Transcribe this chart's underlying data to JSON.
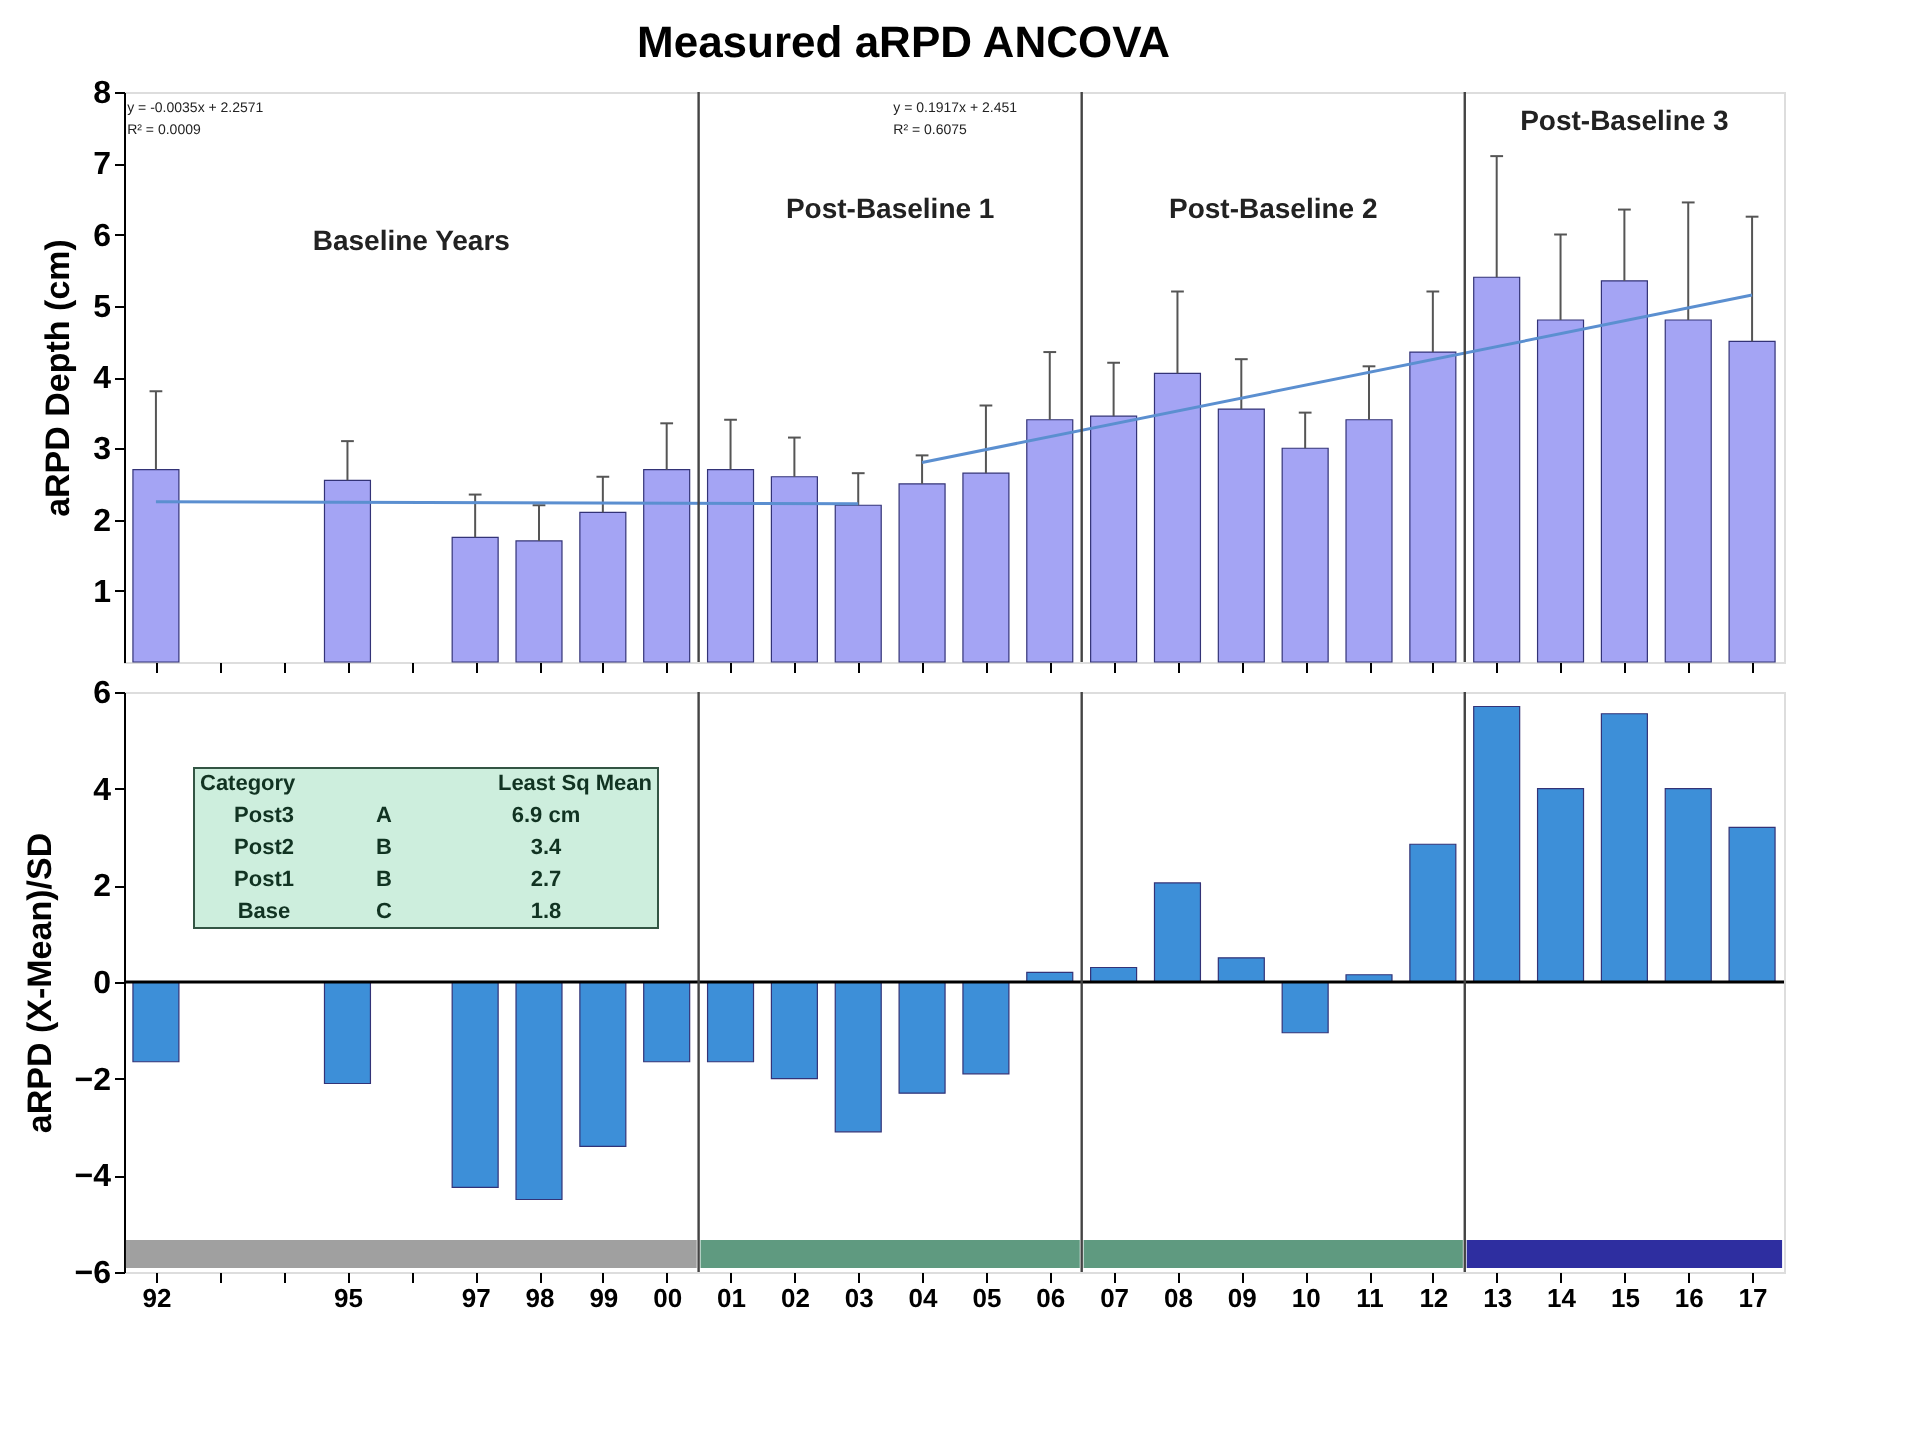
{
  "chart_data": [
    {
      "type": "bar",
      "title": "Measured aRPD ANCOVA",
      "ylabel": "aRPD Depth (cm)",
      "categories": [
        "92",
        null,
        null,
        "95",
        null,
        "97",
        "98",
        "99",
        "00",
        "01",
        "02",
        "03",
        "04",
        "05",
        "06",
        "07",
        "08",
        "09",
        "10",
        "11",
        "12",
        "13",
        "14",
        "15",
        "16",
        "17"
      ],
      "series": [
        {
          "type": "bar",
          "color": "#a4a4f4",
          "values": [
            2.7,
            null,
            null,
            2.55,
            null,
            1.75,
            1.7,
            2.1,
            2.7,
            2.7,
            2.6,
            2.2,
            2.5,
            2.65,
            3.4,
            3.45,
            4.05,
            3.55,
            3.0,
            3.4,
            4.35,
            5.4,
            4.8,
            5.35,
            4.8,
            4.5
          ],
          "errors": [
            [
              2.7,
              3.8
            ],
            null,
            null,
            [
              2.55,
              3.1
            ],
            null,
            [
              1.75,
              2.35
            ],
            [
              1.7,
              2.2
            ],
            [
              2.1,
              2.6
            ],
            [
              2.7,
              3.35
            ],
            [
              2.7,
              3.4
            ],
            [
              2.6,
              3.15
            ],
            [
              2.2,
              2.65
            ],
            [
              2.5,
              2.9
            ],
            [
              2.65,
              3.6
            ],
            [
              3.4,
              4.35
            ],
            [
              3.45,
              4.2
            ],
            [
              4.05,
              5.2
            ],
            [
              3.55,
              4.25
            ],
            [
              3.0,
              3.5
            ],
            [
              3.4,
              4.15
            ],
            [
              4.35,
              5.2
            ],
            [
              5.4,
              7.1
            ],
            [
              4.8,
              6.0
            ],
            [
              5.35,
              6.35
            ],
            [
              4.8,
              6.45
            ],
            [
              4.5,
              6.25
            ]
          ]
        },
        {
          "type": "line",
          "color": "#5b8fd0",
          "x": [
            "92",
            "03"
          ],
          "values": [
            2.25,
            2.22
          ]
        },
        {
          "type": "line",
          "color": "#5b8fd0",
          "x": [
            "04",
            "17"
          ],
          "values": [
            2.8,
            5.15
          ]
        }
      ],
      "ylim": [
        0,
        8
      ],
      "yticks": [
        1,
        2,
        3,
        4,
        5,
        6,
        7,
        8
      ],
      "tick_labels": "y",
      "annotations": [
        "y = -0.0035x + 2.2571",
        "R² = 0.0009",
        "y = 0.1917x + 2.451",
        "R² = 0.6075",
        "Baseline Years",
        "Post-Baseline 1",
        "Post-Baseline 2",
        "Post-Baseline 3"
      ]
    },
    {
      "type": "bar",
      "ylabel": "aRPD (X-Mean)/SD",
      "categories": [
        "92",
        null,
        null,
        "95",
        null,
        "97",
        "98",
        "99",
        "00",
        "01",
        "02",
        "03",
        "04",
        "05",
        "06",
        "07",
        "08",
        "09",
        "10",
        "11",
        "12",
        "13",
        "14",
        "15",
        "16",
        "17"
      ],
      "color": "#3d8fd8",
      "values": [
        -1.65,
        null,
        null,
        -2.1,
        null,
        -4.25,
        -4.5,
        -3.4,
        -1.65,
        -1.65,
        -2.0,
        -3.1,
        -2.3,
        -1.9,
        0.2,
        0.3,
        2.05,
        0.5,
        -1.05,
        0.15,
        2.85,
        5.7,
        4.0,
        5.55,
        4.0,
        3.2
      ],
      "ylim": [
        -6,
        6
      ],
      "yticks": [
        -6,
        -4,
        -2,
        0,
        2,
        4,
        6
      ],
      "ref_lines": [
        {
          "axis": "y",
          "value": 0
        }
      ],
      "bands": [
        {
          "axis": "x",
          "from": "92",
          "to": "00",
          "color": "#a0a0a0"
        },
        {
          "axis": "x",
          "from": "01",
          "to": "06",
          "color": "#5f9a80"
        },
        {
          "axis": "x",
          "from": "07",
          "to": "12",
          "color": "#5f9a80"
        },
        {
          "axis": "x",
          "from": "13",
          "to": "17",
          "color": "#2e2ea0"
        }
      ],
      "annotations": [
        "Category",
        "Least Sq Mean",
        "Post3",
        "A",
        "6.9 cm",
        "Post2",
        "B",
        "3.4",
        "Post1",
        "B",
        "2.7",
        "Base",
        "C",
        "1.8"
      ]
    }
  ]
}
